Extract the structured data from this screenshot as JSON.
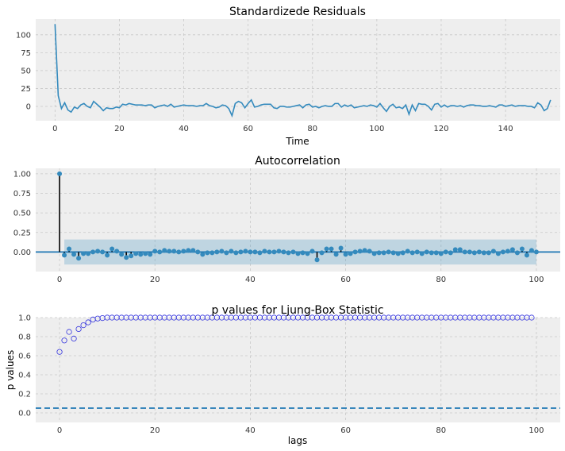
{
  "chart_data": [
    {
      "type": "line",
      "title": "Standardizede Residuals",
      "xlabel": "Time",
      "ylabel": "",
      "xlim": [
        -6,
        157
      ],
      "ylim": [
        -20,
        122
      ],
      "xticks": [
        0,
        20,
        40,
        60,
        80,
        100,
        120,
        140
      ],
      "yticks": [
        0,
        25,
        50,
        75,
        100
      ],
      "grid": true,
      "color": "#348abd",
      "x_start": 0,
      "values": [
        115,
        15,
        -3,
        5,
        -5,
        -8,
        -1,
        -3,
        2,
        4,
        0,
        -2,
        7,
        3,
        -1,
        -6,
        -2,
        -3,
        -3,
        -1,
        -2,
        3,
        2,
        4,
        3,
        2,
        2,
        2,
        1,
        2,
        2,
        -2,
        0,
        1,
        2,
        0,
        3,
        -1,
        0,
        1,
        2,
        1,
        1,
        1,
        0,
        1,
        1,
        4,
        1,
        0,
        -2,
        -1,
        2,
        1,
        -3,
        -13,
        4,
        7,
        5,
        -2,
        4,
        9,
        -1,
        0,
        2,
        3,
        3,
        3,
        -2,
        -3,
        0,
        0,
        -1,
        -1,
        0,
        1,
        2,
        -2,
        2,
        3,
        -1,
        0,
        -2,
        0,
        1,
        0,
        0,
        4,
        4,
        -1,
        2,
        0,
        2,
        -2,
        -1,
        0,
        1,
        0,
        2,
        1,
        -1,
        4,
        -2,
        -7,
        0,
        3,
        -2,
        -1,
        -3,
        2,
        -11,
        2,
        -6,
        4,
        3,
        3,
        0,
        -5,
        3,
        4,
        -1,
        2,
        -1,
        1,
        1,
        0,
        1,
        -1,
        1,
        2,
        2,
        1,
        1,
        0,
        0,
        1,
        0,
        -1,
        2,
        2,
        0,
        1,
        2,
        0,
        1,
        1,
        1,
        0,
        0,
        -2,
        5,
        2,
        -6,
        -3,
        9
      ]
    },
    {
      "type": "stem",
      "title": "Autocorrelation",
      "xlabel": "",
      "ylabel": "",
      "xlim": [
        -5,
        105
      ],
      "ylim": [
        -0.25,
        1.07
      ],
      "xticks": [
        0,
        20,
        40,
        60,
        80,
        100
      ],
      "yticks": [
        0.0,
        0.25,
        0.5,
        0.75,
        1.0
      ],
      "ytick_labels": [
        "0.00",
        "0.25",
        "0.50",
        "0.75",
        "1.00"
      ],
      "grid": true,
      "confidence_band": [
        -0.16,
        0.16
      ],
      "confidence_x": [
        1,
        100
      ],
      "band_color": "#348abd",
      "marker_color": "#348abd",
      "lags": [
        0,
        1,
        2,
        3,
        4,
        5,
        6,
        7,
        8,
        9,
        10,
        11,
        12,
        13,
        14,
        15,
        16,
        17,
        18,
        19,
        20,
        21,
        22,
        23,
        24,
        25,
        26,
        27,
        28,
        29,
        30,
        31,
        32,
        33,
        34,
        35,
        36,
        37,
        38,
        39,
        40,
        41,
        42,
        43,
        44,
        45,
        46,
        47,
        48,
        49,
        50,
        51,
        52,
        53,
        54,
        55,
        56,
        57,
        58,
        59,
        60,
        61,
        62,
        63,
        64,
        65,
        66,
        67,
        68,
        69,
        70,
        71,
        72,
        73,
        74,
        75,
        76,
        77,
        78,
        79,
        80,
        81,
        82,
        83,
        84,
        85,
        86,
        87,
        88,
        89,
        90,
        91,
        92,
        93,
        94,
        95,
        96,
        97,
        98,
        99,
        100
      ],
      "values": [
        1.0,
        -0.04,
        0.04,
        -0.03,
        -0.08,
        -0.02,
        -0.02,
        0.0,
        0.01,
        0.0,
        -0.04,
        0.04,
        0.01,
        -0.03,
        -0.07,
        -0.05,
        -0.02,
        -0.03,
        -0.02,
        -0.03,
        0.01,
        0.0,
        0.02,
        0.01,
        0.01,
        0.0,
        0.01,
        0.02,
        0.02,
        0.0,
        -0.03,
        -0.01,
        -0.01,
        0.0,
        0.01,
        -0.01,
        0.01,
        -0.01,
        0.0,
        0.01,
        0.0,
        0.0,
        -0.01,
        0.01,
        0.0,
        0.0,
        0.01,
        0.0,
        -0.01,
        0.0,
        -0.02,
        -0.01,
        -0.02,
        0.01,
        -0.1,
        -0.01,
        0.04,
        0.04,
        -0.03,
        0.05,
        -0.03,
        -0.02,
        0.0,
        0.01,
        0.02,
        0.01,
        -0.02,
        -0.01,
        -0.01,
        0.0,
        -0.01,
        -0.02,
        -0.01,
        0.01,
        -0.01,
        0.0,
        -0.02,
        0.0,
        -0.01,
        -0.01,
        -0.02,
        0.0,
        -0.01,
        0.03,
        0.03,
        0.0,
        0.0,
        -0.01,
        0.0,
        -0.01,
        -0.01,
        0.01,
        -0.02,
        0.0,
        0.01,
        0.03,
        -0.01,
        0.04,
        -0.04,
        0.02,
        0.0
      ]
    },
    {
      "type": "scatter",
      "title": "p values for Ljung-Box Statistic",
      "xlabel": "lags",
      "ylabel": "p values",
      "xlim": [
        -5,
        105
      ],
      "ylim": [
        -0.1,
        1.0
      ],
      "xticks": [
        0,
        20,
        40,
        60,
        80,
        100
      ],
      "yticks": [
        0.0,
        0.2,
        0.4,
        0.6,
        0.8,
        1.0
      ],
      "ytick_labels": [
        "0.0",
        "0.2",
        "0.4",
        "0.6",
        "0.8",
        "1.0"
      ],
      "grid": true,
      "marker_color": "#3333dd",
      "reference_line": 0.05,
      "reference_line_color": "#1f77b4",
      "x_start": 0,
      "values": [
        0.64,
        0.76,
        0.85,
        0.78,
        0.88,
        0.92,
        0.95,
        0.98,
        0.99,
        0.995,
        1.0,
        1.0,
        1.0,
        1.0,
        1.0,
        1.0,
        1.0,
        1.0,
        1.0,
        1.0,
        1.0,
        1.0,
        1.0,
        1.0,
        1.0,
        1.0,
        1.0,
        1.0,
        1.0,
        1.0,
        1.0,
        1.0,
        1.0,
        1.0,
        1.0,
        1.0,
        1.0,
        1.0,
        1.0,
        1.0,
        1.0,
        1.0,
        1.0,
        1.0,
        1.0,
        1.0,
        1.0,
        1.0,
        1.0,
        1.0,
        1.0,
        1.0,
        1.0,
        1.0,
        1.0,
        1.0,
        1.0,
        1.0,
        1.0,
        1.0,
        1.0,
        1.0,
        1.0,
        1.0,
        1.0,
        1.0,
        1.0,
        1.0,
        1.0,
        1.0,
        1.0,
        1.0,
        1.0,
        1.0,
        1.0,
        1.0,
        1.0,
        1.0,
        1.0,
        1.0,
        1.0,
        1.0,
        1.0,
        1.0,
        1.0,
        1.0,
        1.0,
        1.0,
        1.0,
        1.0,
        1.0,
        1.0,
        1.0,
        1.0,
        1.0,
        1.0,
        1.0,
        1.0,
        1.0,
        1.0
      ]
    }
  ]
}
